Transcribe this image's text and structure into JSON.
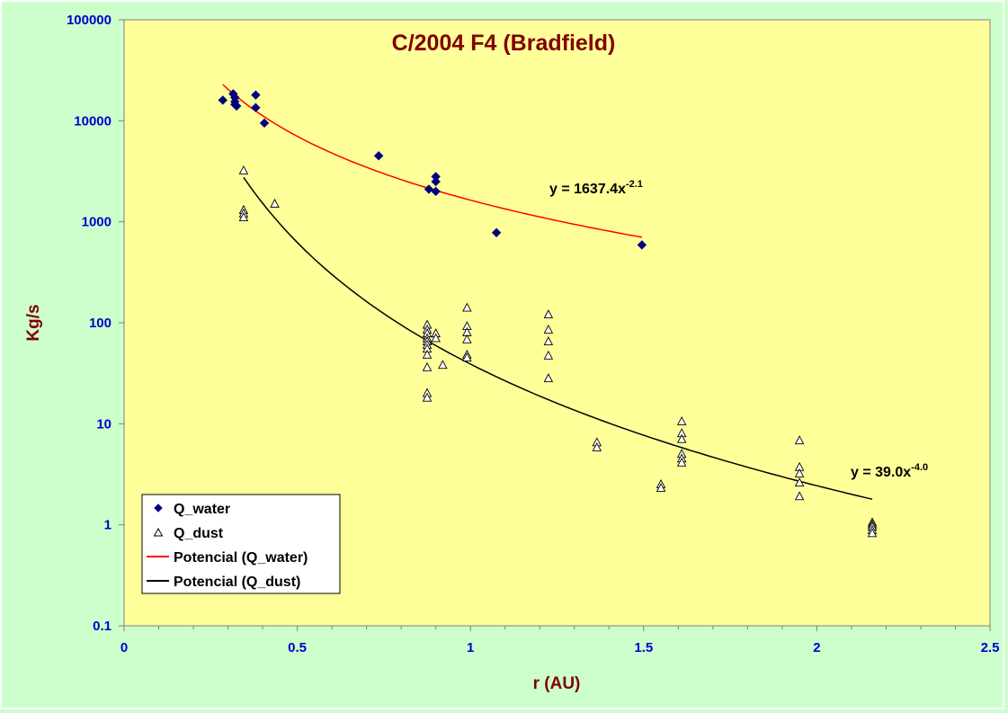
{
  "chart_data": {
    "type": "scatter",
    "title": "C/2004 F4 (Bradfield)",
    "xlabel": "r (AU)",
    "ylabel": "Kg/s",
    "xlim": [
      0,
      2.5
    ],
    "ylim": [
      0.1,
      100000
    ],
    "yscale": "log",
    "grid": false,
    "x_ticks": [
      "0",
      "0.5",
      "1",
      "1.5",
      "2",
      "2.5"
    ],
    "y_ticks": [
      "0.1",
      "1",
      "10",
      "100",
      "1000",
      "10000",
      "100000"
    ],
    "colors": {
      "plot_background": "#ffff99",
      "page_background": "#ccffcc",
      "water": "#000080",
      "water_fit": "#ff0000",
      "dust_fit": "#000000"
    },
    "legend_position": "bottom-left",
    "series": [
      {
        "name": "Q_water",
        "marker": "filled-diamond",
        "points": [
          [
            0.285,
            16000
          ],
          [
            0.315,
            18500
          ],
          [
            0.32,
            17000
          ],
          [
            0.32,
            15500
          ],
          [
            0.32,
            14500
          ],
          [
            0.325,
            14000
          ],
          [
            0.38,
            18000
          ],
          [
            0.38,
            13500
          ],
          [
            0.405,
            9500
          ],
          [
            0.735,
            4500
          ],
          [
            0.88,
            2100
          ],
          [
            0.9,
            2800
          ],
          [
            0.9,
            2500
          ],
          [
            0.9,
            2000
          ],
          [
            1.075,
            780
          ],
          [
            1.495,
            590
          ]
        ]
      },
      {
        "name": "Q_dust",
        "marker": "open-triangle",
        "points": [
          [
            0.345,
            3200
          ],
          [
            0.345,
            1300
          ],
          [
            0.345,
            1200
          ],
          [
            0.345,
            1100
          ],
          [
            0.435,
            1500
          ],
          [
            0.875,
            95
          ],
          [
            0.875,
            85
          ],
          [
            0.875,
            78
          ],
          [
            0.875,
            70
          ],
          [
            0.875,
            65
          ],
          [
            0.875,
            60
          ],
          [
            0.875,
            55
          ],
          [
            0.875,
            48
          ],
          [
            0.875,
            36
          ],
          [
            0.875,
            20
          ],
          [
            0.875,
            18
          ],
          [
            0.9,
            78
          ],
          [
            0.9,
            70
          ],
          [
            0.92,
            38
          ],
          [
            0.99,
            140
          ],
          [
            0.99,
            92
          ],
          [
            0.99,
            80
          ],
          [
            0.99,
            68
          ],
          [
            0.99,
            48
          ],
          [
            0.99,
            45
          ],
          [
            1.225,
            120
          ],
          [
            1.225,
            85
          ],
          [
            1.225,
            65
          ],
          [
            1.225,
            47
          ],
          [
            1.225,
            28
          ],
          [
            1.365,
            6.5
          ],
          [
            1.365,
            5.8
          ],
          [
            1.55,
            2.5
          ],
          [
            1.55,
            2.3
          ],
          [
            1.61,
            10.5
          ],
          [
            1.61,
            8
          ],
          [
            1.61,
            7
          ],
          [
            1.61,
            5
          ],
          [
            1.61,
            4.5
          ],
          [
            1.61,
            4.1
          ],
          [
            1.95,
            6.8
          ],
          [
            1.95,
            3.7
          ],
          [
            1.95,
            3.2
          ],
          [
            1.95,
            2.6
          ],
          [
            1.95,
            1.9
          ],
          [
            2.16,
            1.05
          ],
          [
            2.16,
            1.0
          ],
          [
            2.16,
            0.95
          ],
          [
            2.16,
            0.88
          ],
          [
            2.16,
            0.82
          ]
        ]
      }
    ],
    "trendlines": [
      {
        "name": "Potencial (Q_water)",
        "fit_of": "Q_water",
        "equation": "y = 1637.4x",
        "exponent_label": "-2.1",
        "coef": 1637.4,
        "exponent": -2.1,
        "x_range": [
          0.285,
          1.495
        ]
      },
      {
        "name": "Potencial (Q_dust)",
        "fit_of": "Q_dust",
        "equation": "y = 39.0x",
        "exponent_label": "-4.0",
        "coef": 39.0,
        "exponent": -4.0,
        "x_range": [
          0.345,
          2.16
        ]
      }
    ]
  }
}
